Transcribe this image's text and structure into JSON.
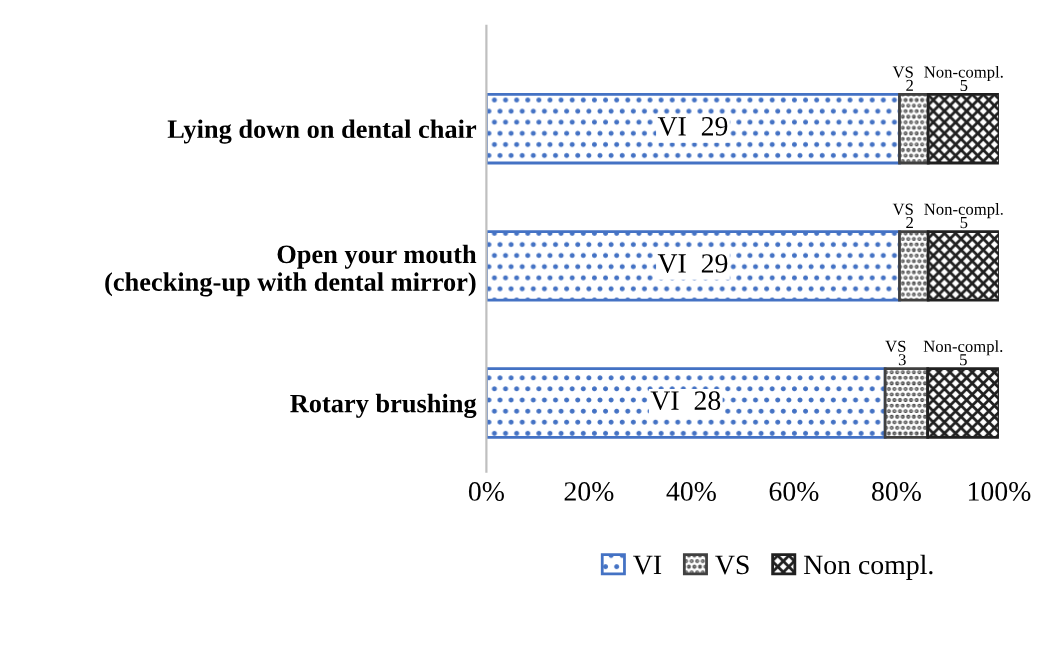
{
  "chart_data": {
    "type": "bar",
    "orientation": "horizontal",
    "stacked": true,
    "categories": [
      "Lying down on dental chair",
      "Open your mouth\n(checking-up with dental mirror)",
      "Rotary brushing"
    ],
    "series": [
      {
        "name": "VI",
        "color": "#4472c4",
        "values": [
          80.6,
          80.6,
          77.8
        ]
      },
      {
        "name": "VS",
        "color": "#404040",
        "values": [
          5.6,
          5.6,
          8.3
        ]
      },
      {
        "name": "Non compl.",
        "color": "#202020",
        "values": [
          13.9,
          13.9,
          13.9
        ]
      }
    ],
    "annotations": [
      "VI  29",
      "VS\n2",
      "Non-compl.\n5",
      "VI  29",
      "VS\n2",
      "Non-compl.\n5",
      "VI  28",
      "VS\n3",
      "Non-compl.\n5"
    ],
    "xlim": [
      0,
      100
    ],
    "xticks": [
      {
        "value": 0,
        "label": "0%"
      },
      {
        "value": 20,
        "label": "20%"
      },
      {
        "value": 40,
        "label": "40%"
      },
      {
        "value": 60,
        "label": "60%"
      },
      {
        "value": 80,
        "label": "80%"
      },
      {
        "value": 100,
        "label": "100%"
      }
    ],
    "grid": false,
    "legend": "bottom"
  }
}
